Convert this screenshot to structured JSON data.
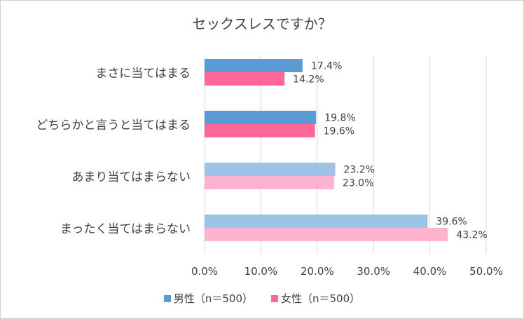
{
  "chart_data": {
    "type": "bar",
    "orientation": "horizontal",
    "title": "セックスレスですか？",
    "categories": [
      "まさに当てはまる",
      "どちらかと言うと当てはまる",
      "あまり当てはまらない",
      "まったく当てはまらない"
    ],
    "series": [
      {
        "name": "男性（n＝500）",
        "values": [
          17.4,
          19.8,
          23.2,
          39.6
        ],
        "data_labels": [
          "17.4%",
          "19.8%",
          "23.2%",
          "39.6%"
        ]
      },
      {
        "name": "女性（n＝500）",
        "values": [
          14.2,
          19.6,
          23.0,
          43.2
        ],
        "data_labels": [
          "14.2%",
          "19.6%",
          "23.0%",
          "43.2%"
        ]
      }
    ],
    "xlim": [
      0,
      50
    ],
    "x_ticks": [
      "0.0%",
      "10.0%",
      "20.0%",
      "30.0%",
      "40.0%",
      "50.0%"
    ],
    "grid": true,
    "legend_position": "bottom",
    "colors": {
      "male": "#5b9bd5",
      "female": "#ff6699",
      "male_light": "#9dc3e6",
      "female_light": "#ffb3cf"
    }
  }
}
